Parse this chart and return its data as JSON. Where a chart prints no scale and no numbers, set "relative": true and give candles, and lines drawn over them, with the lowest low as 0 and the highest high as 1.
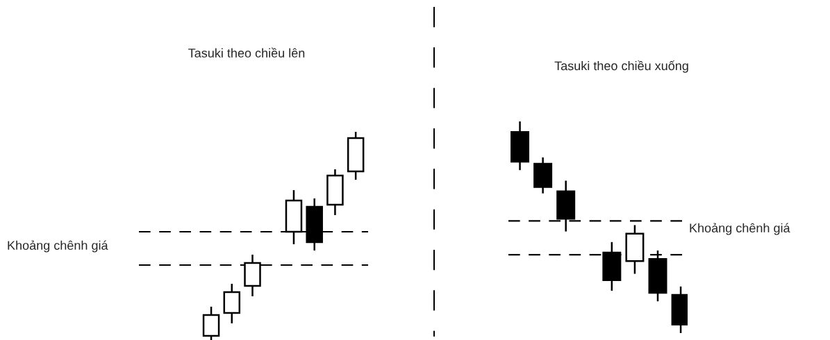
{
  "chart_data": [
    {
      "type": "candlestick",
      "title": "Tasuki theo chiều lên",
      "relative": true,
      "categories": [
        null,
        null,
        null,
        null,
        null,
        null,
        null,
        null
      ],
      "ohlc": [
        [
          0.02,
          0.16,
          0.0,
          0.12
        ],
        [
          0.13,
          0.27,
          0.08,
          0.23
        ],
        [
          0.26,
          0.41,
          0.21,
          0.37
        ],
        null,
        [
          0.52,
          0.72,
          0.46,
          0.67
        ],
        [
          0.64,
          0.68,
          0.43,
          0.47
        ],
        [
          0.65,
          0.82,
          0.6,
          0.79
        ],
        [
          0.81,
          1.0,
          0.77,
          0.97
        ]
      ],
      "ref_lines": [
        {
          "axis": "y",
          "value": 0.52,
          "line_style": "dashed",
          "color": "#000000"
        },
        {
          "axis": "y",
          "value": 0.36,
          "line_style": "dashed",
          "color": "#000000"
        }
      ],
      "annotations": [
        "Khoảng chênh giá"
      ]
    },
    {
      "type": "candlestick",
      "title": "Tasuki theo chiều xuống",
      "relative": true,
      "categories": [
        null,
        null,
        null,
        null,
        null,
        null,
        null,
        null
      ],
      "ohlc": [
        [
          0.95,
          1.0,
          0.77,
          0.81
        ],
        [
          0.8,
          0.83,
          0.66,
          0.69
        ],
        [
          0.67,
          0.72,
          0.48,
          0.54
        ],
        null,
        [
          0.38,
          0.43,
          0.2,
          0.25
        ],
        [
          0.34,
          0.51,
          0.28,
          0.47
        ],
        [
          0.35,
          0.39,
          0.15,
          0.19
        ],
        [
          0.18,
          0.22,
          0.0,
          0.04
        ]
      ],
      "ref_lines": [
        {
          "axis": "y",
          "value": 0.53,
          "line_style": "dashed",
          "color": "#000000"
        },
        {
          "axis": "y",
          "value": 0.37,
          "line_style": "dashed",
          "color": "#000000"
        }
      ],
      "annotations": [
        "Khoảng chênh giá"
      ]
    }
  ]
}
